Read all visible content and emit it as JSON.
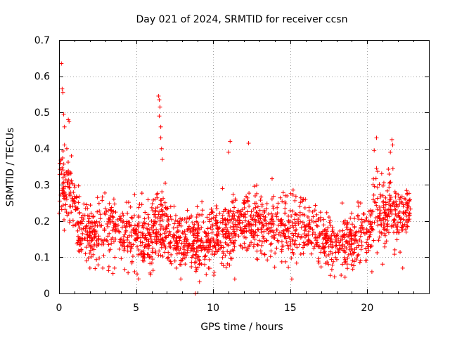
{
  "colors": {
    "series": "#ff0000"
  },
  "chart_data": {
    "type": "scatter",
    "title": "Day 021 of 2024, SRMTID for receiver ccsn",
    "xlabel": "GPS time / hours",
    "ylabel": "SRMTID / TECUs",
    "xlim": [
      0,
      24
    ],
    "ylim": [
      0,
      0.7
    ],
    "xticks": [
      0,
      5,
      10,
      15,
      20
    ],
    "xtick_labels": [
      "0",
      "5",
      "10",
      "15",
      "20"
    ],
    "yticks": [
      0,
      0.1,
      0.2,
      0.3,
      0.4,
      0.5,
      0.6,
      0.7
    ],
    "ytick_labels": [
      "0",
      "0.1",
      "0.2",
      "0.3",
      "0.4",
      "0.5",
      "0.6",
      "0.7"
    ],
    "grid": true,
    "marker": "+",
    "data_range": [
      0,
      22.8
    ],
    "profile": {
      "hours": [
        0,
        0.3,
        0.7,
        1.0,
        1.3,
        2.0,
        3.0,
        4.0,
        5.0,
        6.0,
        6.4,
        7.0,
        8.0,
        9.0,
        10.0,
        11.0,
        12.0,
        13.0,
        14.0,
        15.0,
        16.0,
        17.0,
        18.0,
        19.0,
        20.0,
        20.5,
        21.0,
        21.5,
        22.0,
        22.8
      ],
      "median": [
        0.3,
        0.28,
        0.27,
        0.24,
        0.17,
        0.16,
        0.18,
        0.17,
        0.16,
        0.15,
        0.2,
        0.17,
        0.14,
        0.14,
        0.16,
        0.17,
        0.2,
        0.19,
        0.18,
        0.19,
        0.18,
        0.15,
        0.13,
        0.14,
        0.16,
        0.2,
        0.23,
        0.22,
        0.2,
        0.24
      ],
      "spread": [
        0.07,
        0.07,
        0.06,
        0.05,
        0.05,
        0.05,
        0.06,
        0.06,
        0.06,
        0.06,
        0.07,
        0.06,
        0.05,
        0.06,
        0.06,
        0.06,
        0.06,
        0.06,
        0.06,
        0.06,
        0.06,
        0.05,
        0.05,
        0.05,
        0.06,
        0.07,
        0.07,
        0.07,
        0.06,
        0.04
      ]
    },
    "outliers": [
      {
        "x": 0.15,
        "y": 0.635
      },
      {
        "x": 0.2,
        "y": 0.565
      },
      {
        "x": 0.25,
        "y": 0.555
      },
      {
        "x": 0.3,
        "y": 0.495
      },
      {
        "x": 0.35,
        "y": 0.46
      },
      {
        "x": 0.6,
        "y": 0.48
      },
      {
        "x": 0.65,
        "y": 0.475
      },
      {
        "x": 0.5,
        "y": 0.4
      },
      {
        "x": 0.8,
        "y": 0.38
      },
      {
        "x": 0.35,
        "y": 0.41
      },
      {
        "x": 6.45,
        "y": 0.545
      },
      {
        "x": 6.5,
        "y": 0.535
      },
      {
        "x": 6.55,
        "y": 0.515
      },
      {
        "x": 6.5,
        "y": 0.49
      },
      {
        "x": 6.6,
        "y": 0.46
      },
      {
        "x": 6.6,
        "y": 0.43
      },
      {
        "x": 6.65,
        "y": 0.4
      },
      {
        "x": 6.7,
        "y": 0.37
      },
      {
        "x": 11.1,
        "y": 0.42
      },
      {
        "x": 12.3,
        "y": 0.415
      },
      {
        "x": 11.0,
        "y": 0.39
      },
      {
        "x": 20.6,
        "y": 0.43
      },
      {
        "x": 21.6,
        "y": 0.425
      },
      {
        "x": 21.65,
        "y": 0.41
      },
      {
        "x": 20.45,
        "y": 0.395
      },
      {
        "x": 21.5,
        "y": 0.39
      },
      {
        "x": 8.85,
        "y": 0.0
      },
      {
        "x": 7.9,
        "y": 0.04
      },
      {
        "x": 11.4,
        "y": 0.04
      },
      {
        "x": 17.6,
        "y": 0.05
      },
      {
        "x": 15.1,
        "y": 0.04
      },
      {
        "x": 20.3,
        "y": 0.06
      },
      {
        "x": 22.3,
        "y": 0.07
      },
      {
        "x": 2.0,
        "y": 0.07
      },
      {
        "x": 3.6,
        "y": 0.07
      },
      {
        "x": 4.9,
        "y": 0.06
      }
    ]
  }
}
